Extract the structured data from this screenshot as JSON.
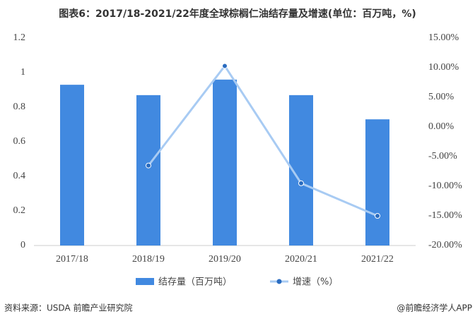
{
  "chart_data": {
    "type": "bar_line",
    "title": "图表6：2017/18-2021/22年度全球棕榈仁油结存量及增速(单位：百万吨，%)",
    "categories": [
      "2017/18",
      "2018/19",
      "2019/20",
      "2020/21",
      "2021/22"
    ],
    "series": [
      {
        "name": "结存量（百万吨）",
        "type": "bar",
        "color": "#4189e0",
        "values": [
          0.93,
          0.87,
          0.96,
          0.87,
          0.73
        ]
      },
      {
        "name": "增速（%）",
        "type": "line",
        "axis": "y2",
        "color": "#a8cbf3",
        "marker_color": "#2a6cc0",
        "values": [
          null,
          -6.5,
          10.3,
          -9.5,
          -15.0
        ]
      }
    ],
    "ylim": [
      0,
      1.2
    ],
    "yticks": [
      0,
      0.2,
      0.4,
      0.6,
      0.8,
      1,
      1.2
    ],
    "y2lim": [
      -20,
      15
    ],
    "y2ticks": [
      {
        "value": -20,
        "label": "-20.00%"
      },
      {
        "value": -15,
        "label": "-15.00%"
      },
      {
        "value": -10,
        "label": "-10.00%"
      },
      {
        "value": -5,
        "label": "-5.00%"
      },
      {
        "value": 0,
        "label": "0.00%"
      },
      {
        "value": 5,
        "label": "5.00%"
      },
      {
        "value": 10,
        "label": "10.00%"
      },
      {
        "value": 15,
        "label": "15.00%"
      }
    ],
    "source": "资料来源：USDA 前瞻产业研究院",
    "credit": "@前瞻经济学人APP"
  }
}
